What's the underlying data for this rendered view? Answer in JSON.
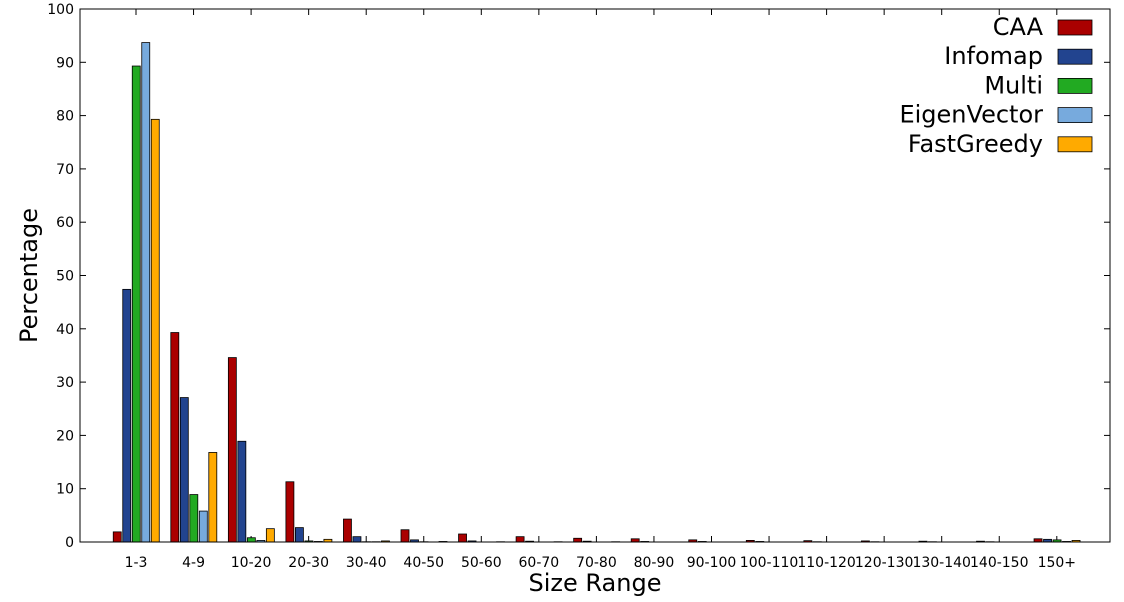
{
  "chart_data": {
    "type": "bar",
    "title": "",
    "xlabel": "Size Range",
    "ylabel": "Percentage",
    "ylim": [
      0,
      100
    ],
    "yticks": [
      0,
      10,
      20,
      30,
      40,
      50,
      60,
      70,
      80,
      90,
      100
    ],
    "grid": false,
    "legend_position": "top-right",
    "categories": [
      "1-3",
      "4-9",
      "10-20",
      "20-30",
      "30-40",
      "40-50",
      "50-60",
      "60-70",
      "70-80",
      "80-90",
      "90-100",
      "100-110",
      "110-120",
      "120-130",
      "130-140",
      "140-150",
      "150+"
    ],
    "series": [
      {
        "name": "CAA",
        "color": "#aa0000",
        "values": [
          1.9,
          39.3,
          34.6,
          11.3,
          4.3,
          2.3,
          1.5,
          1.0,
          0.7,
          0.6,
          0.4,
          0.3,
          0.25,
          0.2,
          0.15,
          0.15,
          0.6
        ]
      },
      {
        "name": "Infomap",
        "color": "#22448f",
        "values": [
          47.4,
          27.1,
          18.9,
          2.7,
          1.0,
          0.4,
          0.2,
          0.15,
          0.15,
          0.1,
          0.1,
          0.1,
          0.05,
          0.05,
          0.05,
          0.05,
          0.5
        ]
      },
      {
        "name": "Multi",
        "color": "#22aa22",
        "values": [
          89.3,
          8.9,
          0.8,
          0.2,
          0.05,
          0.05,
          0.0,
          0.0,
          0.0,
          0.0,
          0.0,
          0.0,
          0.0,
          0.0,
          0.0,
          0.0,
          0.4
        ]
      },
      {
        "name": "EigenVector",
        "color": "#77aadd",
        "values": [
          93.7,
          5.8,
          0.3,
          0.1,
          0.05,
          0.0,
          0.0,
          0.0,
          0.0,
          0.0,
          0.0,
          0.0,
          0.0,
          0.0,
          0.0,
          0.0,
          0.1
        ]
      },
      {
        "name": "FastGreedy",
        "color": "#ffaa00",
        "values": [
          79.3,
          16.8,
          2.5,
          0.5,
          0.2,
          0.1,
          0.05,
          0.05,
          0.05,
          0.0,
          0.0,
          0.0,
          0.0,
          0.0,
          0.0,
          0.0,
          0.3
        ]
      }
    ]
  }
}
